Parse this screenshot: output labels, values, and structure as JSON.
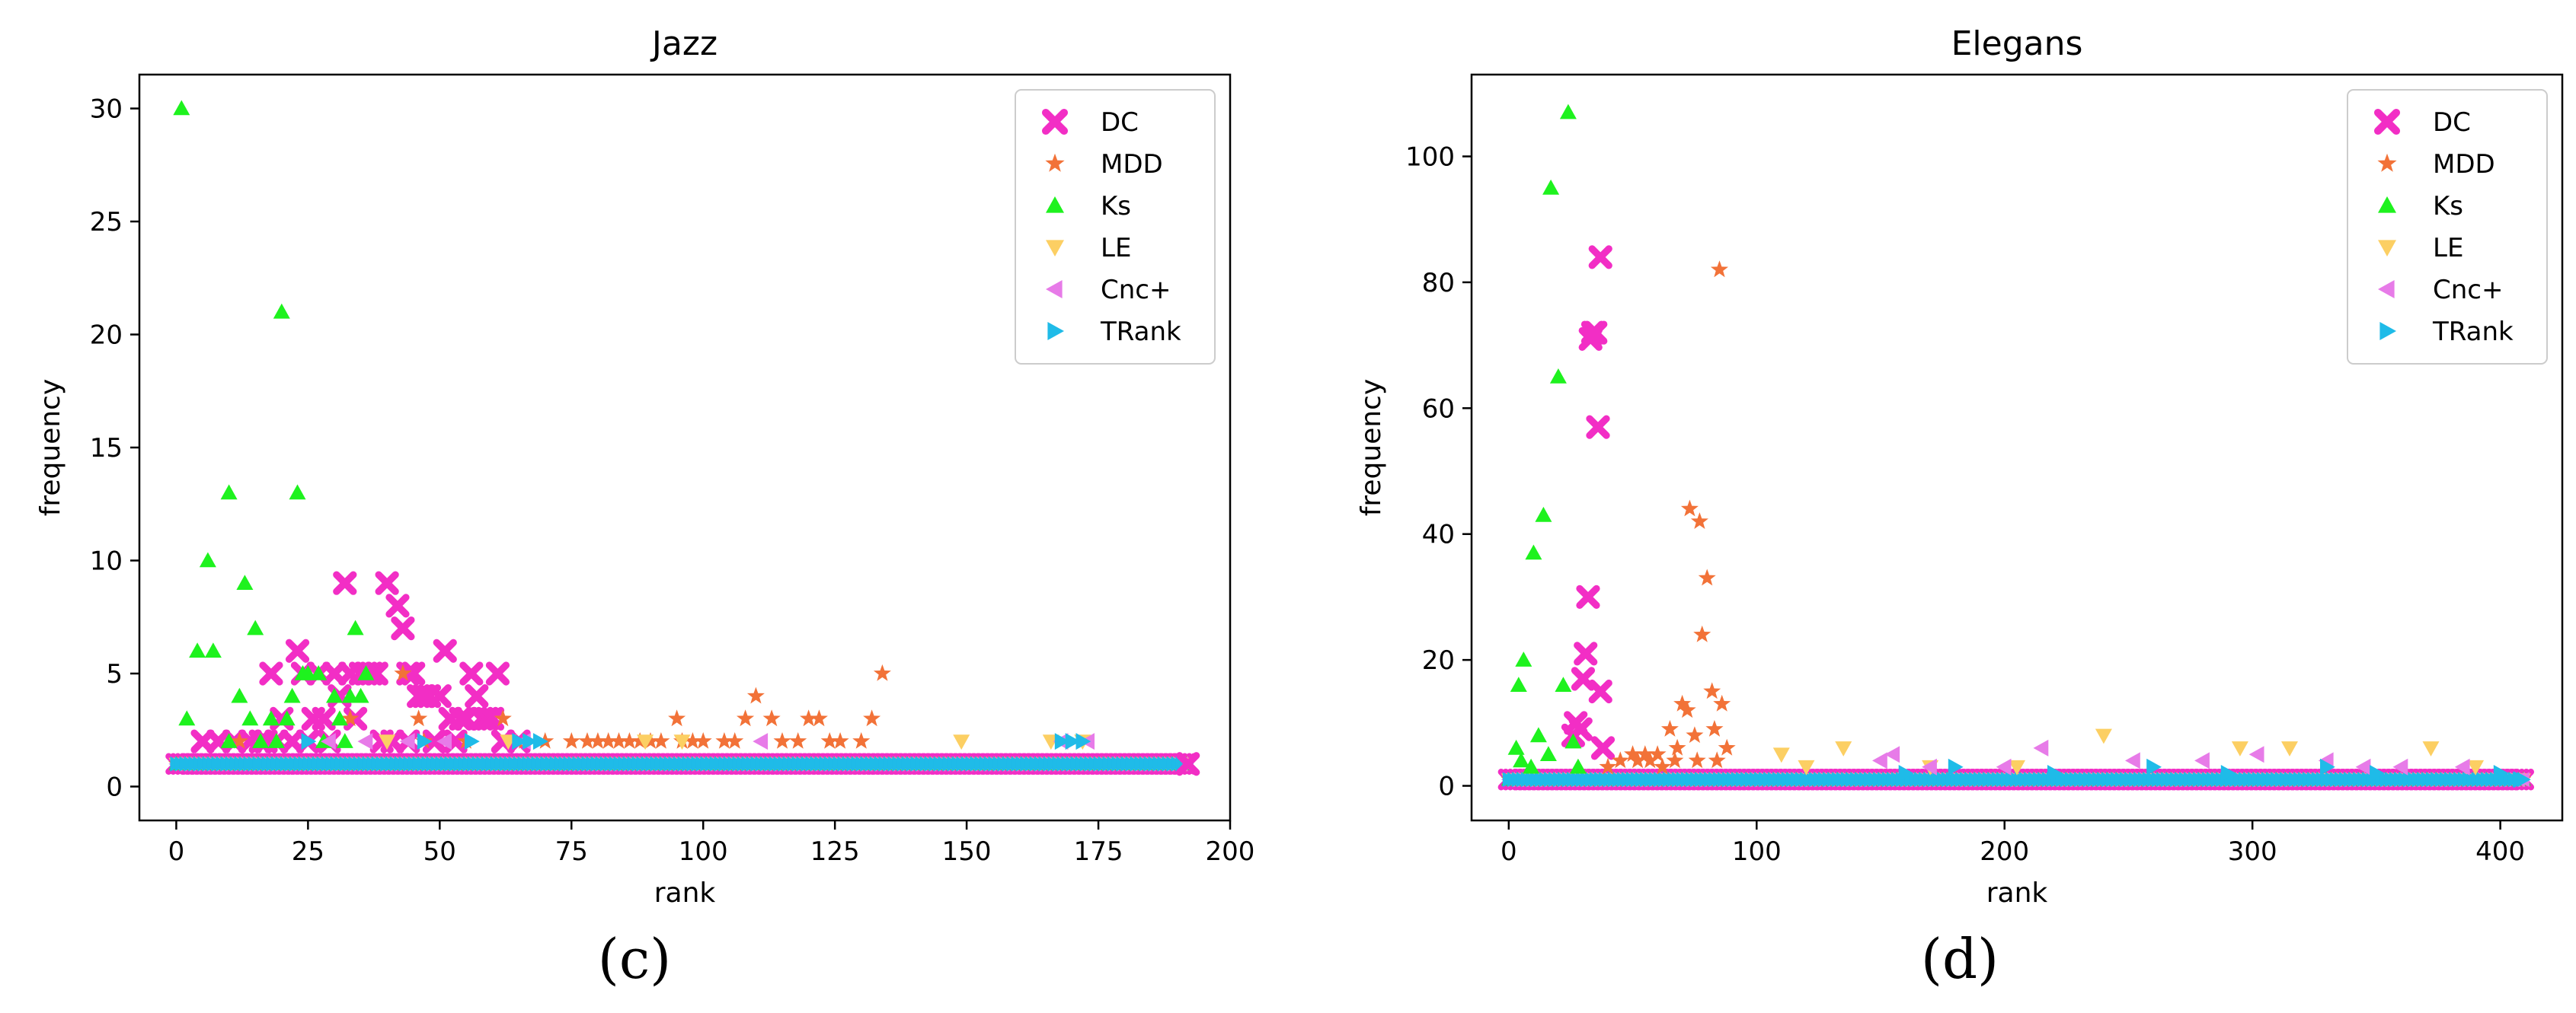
{
  "colors": {
    "DC": "#f22ec5",
    "MDD": "#f27238",
    "Ks": "#1ef21e",
    "LE": "#fccf63",
    "Cnc+": "#e77be8",
    "TRank": "#1fbbe8"
  },
  "legend_series": [
    {
      "name": "DC",
      "marker": "x"
    },
    {
      "name": "MDD",
      "marker": "star"
    },
    {
      "name": "Ks",
      "marker": "triangle-up"
    },
    {
      "name": "LE",
      "marker": "triangle-down"
    },
    {
      "name": "Cnc+",
      "marker": "triangle-left"
    },
    {
      "name": "TRank",
      "marker": "triangle-right"
    }
  ],
  "chart_data": [
    {
      "type": "scatter",
      "title": "Jazz",
      "xlabel": "rank",
      "ylabel": "frequency",
      "caption": "(c)",
      "xlim": [
        -7,
        200
      ],
      "ylim": [
        -1.5,
        31.5
      ],
      "xticks": [
        0,
        25,
        50,
        75,
        100,
        125,
        150,
        175,
        200
      ],
      "yticks": [
        0,
        5,
        10,
        15,
        20,
        25,
        30
      ],
      "legend_position": "top-right",
      "baseline": {
        "x_start": 0,
        "x_end": 192,
        "y": 1
      },
      "series": [
        {
          "name": "DC",
          "points": [
            [
              18,
              5
            ],
            [
              20,
              3
            ],
            [
              23,
              6
            ],
            [
              24,
              5
            ],
            [
              26,
              3
            ],
            [
              27,
              5
            ],
            [
              28,
              3
            ],
            [
              30,
              5
            ],
            [
              31,
              4
            ],
            [
              32,
              9
            ],
            [
              33,
              5
            ],
            [
              34,
              3
            ],
            [
              35,
              5
            ],
            [
              36,
              5
            ],
            [
              37,
              5
            ],
            [
              38,
              5
            ],
            [
              40,
              9
            ],
            [
              42,
              8
            ],
            [
              43,
              7
            ],
            [
              44,
              5
            ],
            [
              45,
              5
            ],
            [
              46,
              4
            ],
            [
              47,
              4
            ],
            [
              48,
              4
            ],
            [
              50,
              4
            ],
            [
              51,
              6
            ],
            [
              52,
              3
            ],
            [
              54,
              3
            ],
            [
              55,
              3
            ],
            [
              56,
              5
            ],
            [
              57,
              4
            ],
            [
              58,
              3
            ],
            [
              59,
              3
            ],
            [
              60,
              3
            ],
            [
              61,
              5
            ],
            [
              5,
              2
            ],
            [
              8,
              2
            ],
            [
              11,
              2
            ],
            [
              14,
              2
            ],
            [
              16,
              2
            ],
            [
              17,
              2
            ],
            [
              19,
              2
            ],
            [
              22,
              2
            ],
            [
              25,
              2
            ],
            [
              29,
              2
            ],
            [
              39,
              2
            ],
            [
              41,
              2
            ],
            [
              44,
              2
            ],
            [
              49,
              2
            ],
            [
              53,
              2
            ],
            [
              62,
              2
            ],
            [
              65,
              2
            ],
            [
              192,
              1
            ]
          ]
        },
        {
          "name": "MDD",
          "points": [
            [
              12,
              2
            ],
            [
              33,
              3
            ],
            [
              43,
              5
            ],
            [
              46,
              3
            ],
            [
              47,
              2
            ],
            [
              55,
              2
            ],
            [
              62,
              3
            ],
            [
              66,
              2
            ],
            [
              70,
              2
            ],
            [
              75,
              2
            ],
            [
              78,
              2
            ],
            [
              80,
              2
            ],
            [
              82,
              2
            ],
            [
              84,
              2
            ],
            [
              86,
              2
            ],
            [
              88,
              2
            ],
            [
              90,
              2
            ],
            [
              92,
              2
            ],
            [
              95,
              3
            ],
            [
              96,
              2
            ],
            [
              98,
              2
            ],
            [
              100,
              2
            ],
            [
              104,
              2
            ],
            [
              106,
              2
            ],
            [
              108,
              3
            ],
            [
              110,
              4
            ],
            [
              113,
              3
            ],
            [
              115,
              2
            ],
            [
              118,
              2
            ],
            [
              120,
              3
            ],
            [
              122,
              3
            ],
            [
              124,
              2
            ],
            [
              126,
              2
            ],
            [
              130,
              2
            ],
            [
              132,
              3
            ],
            [
              134,
              5
            ]
          ]
        },
        {
          "name": "Ks",
          "points": [
            [
              1,
              30
            ],
            [
              2,
              3
            ],
            [
              4,
              6
            ],
            [
              6,
              10
            ],
            [
              7,
              6
            ],
            [
              10,
              13
            ],
            [
              12,
              4
            ],
            [
              13,
              9
            ],
            [
              14,
              3
            ],
            [
              15,
              7
            ],
            [
              18,
              3
            ],
            [
              20,
              21
            ],
            [
              21,
              3
            ],
            [
              22,
              4
            ],
            [
              23,
              13
            ],
            [
              24,
              5
            ],
            [
              25,
              5
            ],
            [
              27,
              5
            ],
            [
              30,
              4
            ],
            [
              31,
              3
            ],
            [
              33,
              4
            ],
            [
              34,
              7
            ],
            [
              35,
              4
            ],
            [
              36,
              5
            ],
            [
              10,
              2
            ],
            [
              16,
              2
            ],
            [
              19,
              2
            ],
            [
              28,
              2
            ],
            [
              32,
              2
            ]
          ]
        },
        {
          "name": "LE",
          "points": [
            [
              40,
              2
            ],
            [
              63,
              2
            ],
            [
              89,
              2
            ],
            [
              96,
              2
            ],
            [
              149,
              2
            ],
            [
              166,
              2
            ],
            [
              172,
              2
            ]
          ]
        },
        {
          "name": "Cnc+",
          "points": [
            [
              29,
              2
            ],
            [
              36,
              2
            ],
            [
              44,
              2
            ],
            [
              51,
              2
            ],
            [
              66,
              2
            ],
            [
              111,
              2
            ],
            [
              168,
              2
            ],
            [
              173,
              2
            ]
          ]
        },
        {
          "name": "TRank",
          "points": [
            [
              25,
              2
            ],
            [
              47,
              2
            ],
            [
              56,
              2
            ],
            [
              65,
              2
            ],
            [
              67,
              2
            ],
            [
              69,
              2
            ],
            [
              168,
              2
            ],
            [
              170,
              2
            ],
            [
              172,
              2
            ]
          ]
        }
      ]
    },
    {
      "type": "scatter",
      "title": "Elegans",
      "xlabel": "rank",
      "ylabel": "frequency",
      "caption": "(d)",
      "xlim": [
        -15,
        425
      ],
      "ylim": [
        -5.5,
        113
      ],
      "xticks": [
        0,
        100,
        200,
        300,
        400
      ],
      "yticks": [
        0,
        20,
        40,
        60,
        80,
        100
      ],
      "legend_position": "top-right",
      "baseline": {
        "x_start": 0,
        "x_end": 410,
        "y": 1
      },
      "series": [
        {
          "name": "DC",
          "points": [
            [
              26,
              8
            ],
            [
              27,
              10
            ],
            [
              29,
              9
            ],
            [
              30,
              17
            ],
            [
              31,
              21
            ],
            [
              32,
              30
            ],
            [
              33,
              71
            ],
            [
              34,
              72
            ],
            [
              35,
              72
            ],
            [
              36,
              57
            ],
            [
              37,
              84
            ],
            [
              37,
              15
            ],
            [
              38,
              6
            ]
          ]
        },
        {
          "name": "MDD",
          "points": [
            [
              40,
              3
            ],
            [
              45,
              4
            ],
            [
              50,
              5
            ],
            [
              52,
              4
            ],
            [
              55,
              5
            ],
            [
              57,
              4
            ],
            [
              60,
              5
            ],
            [
              62,
              3
            ],
            [
              65,
              9
            ],
            [
              67,
              4
            ],
            [
              68,
              6
            ],
            [
              70,
              13
            ],
            [
              72,
              12
            ],
            [
              73,
              44
            ],
            [
              75,
              8
            ],
            [
              76,
              4
            ],
            [
              77,
              42
            ],
            [
              78,
              24
            ],
            [
              80,
              33
            ],
            [
              82,
              15
            ],
            [
              83,
              9
            ],
            [
              84,
              4
            ],
            [
              85,
              82
            ],
            [
              86,
              13
            ],
            [
              88,
              6
            ]
          ]
        },
        {
          "name": "Ks",
          "points": [
            [
              4,
              16
            ],
            [
              5,
              4
            ],
            [
              6,
              20
            ],
            [
              10,
              37
            ],
            [
              12,
              8
            ],
            [
              14,
              43
            ],
            [
              16,
              5
            ],
            [
              17,
              95
            ],
            [
              20,
              65
            ],
            [
              22,
              16
            ],
            [
              24,
              107
            ],
            [
              26,
              7
            ],
            [
              28,
              3
            ],
            [
              3,
              6
            ],
            [
              9,
              3
            ]
          ]
        },
        {
          "name": "LE",
          "points": [
            [
              110,
              5
            ],
            [
              120,
              3
            ],
            [
              135,
              6
            ],
            [
              170,
              3
            ],
            [
              205,
              3
            ],
            [
              240,
              8
            ],
            [
              295,
              6
            ],
            [
              315,
              6
            ],
            [
              372,
              6
            ],
            [
              390,
              3
            ]
          ]
        },
        {
          "name": "Cnc+",
          "points": [
            [
              150,
              4
            ],
            [
              155,
              5
            ],
            [
              170,
              3
            ],
            [
              200,
              3
            ],
            [
              215,
              6
            ],
            [
              252,
              4
            ],
            [
              280,
              4
            ],
            [
              302,
              5
            ],
            [
              330,
              4
            ],
            [
              345,
              3
            ],
            [
              360,
              3
            ],
            [
              385,
              3
            ]
          ]
        },
        {
          "name": "TRank",
          "points": [
            [
              160,
              2
            ],
            [
              180,
              3
            ],
            [
              220,
              2
            ],
            [
              260,
              3
            ],
            [
              290,
              2
            ],
            [
              330,
              3
            ],
            [
              350,
              2
            ],
            [
              400,
              2
            ],
            [
              408,
              1
            ]
          ]
        }
      ]
    }
  ]
}
